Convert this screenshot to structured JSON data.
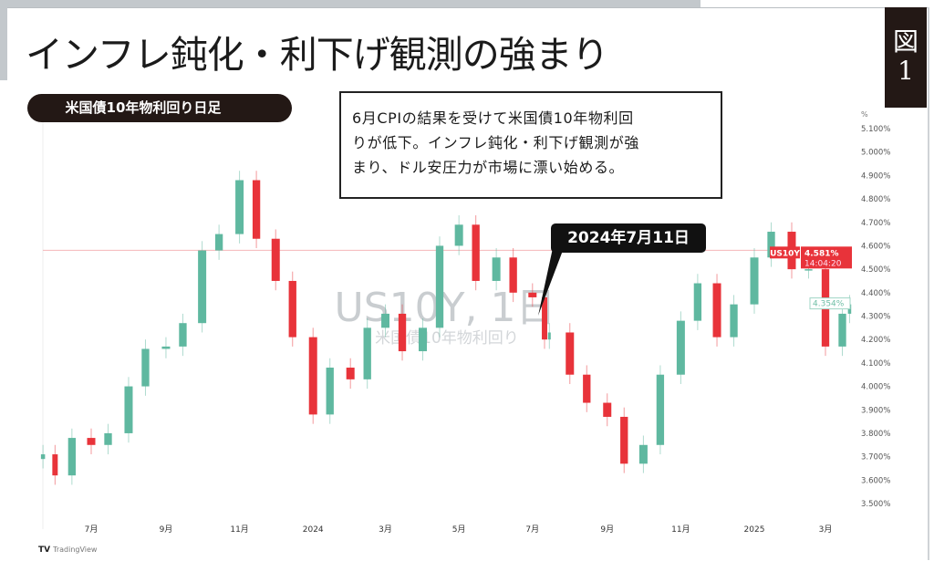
{
  "title": "インフレ鈍化・利下げ観測の強まり",
  "figure_badge": {
    "label": "図",
    "number": "1"
  },
  "series_badge": "米国債10年物利回り日足",
  "annotation": {
    "lines": [
      "6月CPIの結果を受けて米国債10年物利回",
      "りが低下。インフレ鈍化・利下げ観測が強",
      "まり、ドル安圧力が市場に漂い始める。"
    ]
  },
  "callout": "2024年7月11日",
  "watermark": {
    "symbol": "US10Y, 1日",
    "name": "米国債10年物利回り"
  },
  "price_labels": {
    "symbol": "US10Y",
    "last_price": "4.581%",
    "countdown": "14:04:20",
    "current": "4.354%"
  },
  "footer": {
    "brand_logo": "TV",
    "brand": "TradingView"
  },
  "colors": {
    "up": "#5fb8a0",
    "down": "#e8333a",
    "badge": "#231815",
    "price_line": "#f4b6b8"
  },
  "chart_data": {
    "type": "candlestick",
    "title": "",
    "xlabel": "",
    "ylabel": "",
    "y_unit_label": "%",
    "ylim": [
      3.5,
      5.1
    ],
    "y_scale": "linear",
    "y_position": "right",
    "grid": false,
    "y_ticks": [
      "5.100%",
      "5.000%",
      "4.900%",
      "4.800%",
      "4.700%",
      "4.600%",
      "4.500%",
      "4.400%",
      "4.300%",
      "4.200%",
      "4.100%",
      "4.000%",
      "3.900%",
      "3.800%",
      "3.700%",
      "3.600%",
      "3.500%"
    ],
    "x_ticks": [
      {
        "date": "2023-07-01",
        "label": "7月"
      },
      {
        "date": "2023-09-01",
        "label": "9月"
      },
      {
        "date": "2023-11-01",
        "label": "11月"
      },
      {
        "date": "2024-01-01",
        "label": "2024"
      },
      {
        "date": "2024-03-01",
        "label": "3月"
      },
      {
        "date": "2024-05-01",
        "label": "5月"
      },
      {
        "date": "2024-07-01",
        "label": "7月"
      },
      {
        "date": "2024-09-01",
        "label": "9月"
      },
      {
        "date": "2024-11-01",
        "label": "11月"
      },
      {
        "date": "2025-01-01",
        "label": "2025"
      },
      {
        "date": "2025-03-01",
        "label": "3月"
      }
    ],
    "last_price": 4.581,
    "current_value": 4.354,
    "highlight_date": "2024-07-11",
    "points": [
      {
        "date": "2023-05-22",
        "close": 3.71
      },
      {
        "date": "2023-06-01",
        "close": 3.62
      },
      {
        "date": "2023-06-15",
        "close": 3.78
      },
      {
        "date": "2023-07-01",
        "close": 3.75
      },
      {
        "date": "2023-07-15",
        "close": 3.8
      },
      {
        "date": "2023-08-01",
        "close": 4.0
      },
      {
        "date": "2023-08-15",
        "close": 4.16
      },
      {
        "date": "2023-09-01",
        "close": 4.17
      },
      {
        "date": "2023-09-15",
        "close": 4.27
      },
      {
        "date": "2023-10-01",
        "close": 4.58
      },
      {
        "date": "2023-10-15",
        "close": 4.65
      },
      {
        "date": "2023-11-01",
        "close": 4.88
      },
      {
        "date": "2023-11-15",
        "close": 4.63
      },
      {
        "date": "2023-12-01",
        "close": 4.45
      },
      {
        "date": "2023-12-15",
        "close": 4.21
      },
      {
        "date": "2024-01-01",
        "close": 3.88
      },
      {
        "date": "2024-01-15",
        "close": 4.08
      },
      {
        "date": "2024-02-01",
        "close": 4.03
      },
      {
        "date": "2024-02-15",
        "close": 4.25
      },
      {
        "date": "2024-03-01",
        "close": 4.31
      },
      {
        "date": "2024-03-15",
        "close": 4.15
      },
      {
        "date": "2024-04-01",
        "close": 4.25
      },
      {
        "date": "2024-04-15",
        "close": 4.6
      },
      {
        "date": "2024-05-01",
        "close": 4.69
      },
      {
        "date": "2024-05-15",
        "close": 4.45
      },
      {
        "date": "2024-06-01",
        "close": 4.55
      },
      {
        "date": "2024-06-15",
        "close": 4.4
      },
      {
        "date": "2024-07-01",
        "close": 4.38
      },
      {
        "date": "2024-07-11",
        "close": 4.2
      },
      {
        "date": "2024-07-15",
        "close": 4.23
      },
      {
        "date": "2024-08-01",
        "close": 4.05
      },
      {
        "date": "2024-08-15",
        "close": 3.93
      },
      {
        "date": "2024-09-01",
        "close": 3.87
      },
      {
        "date": "2024-09-15",
        "close": 3.67
      },
      {
        "date": "2024-10-01",
        "close": 3.75
      },
      {
        "date": "2024-10-15",
        "close": 4.05
      },
      {
        "date": "2024-11-01",
        "close": 4.28
      },
      {
        "date": "2024-11-15",
        "close": 4.44
      },
      {
        "date": "2024-12-01",
        "close": 4.21
      },
      {
        "date": "2024-12-15",
        "close": 4.35
      },
      {
        "date": "2025-01-01",
        "close": 4.55
      },
      {
        "date": "2025-01-15",
        "close": 4.66
      },
      {
        "date": "2025-02-01",
        "close": 4.5
      },
      {
        "date": "2025-02-15",
        "close": 4.5
      },
      {
        "date": "2025-03-01",
        "close": 4.17
      },
      {
        "date": "2025-03-15",
        "close": 4.31
      },
      {
        "date": "2025-03-21",
        "close": 4.35
      }
    ]
  }
}
